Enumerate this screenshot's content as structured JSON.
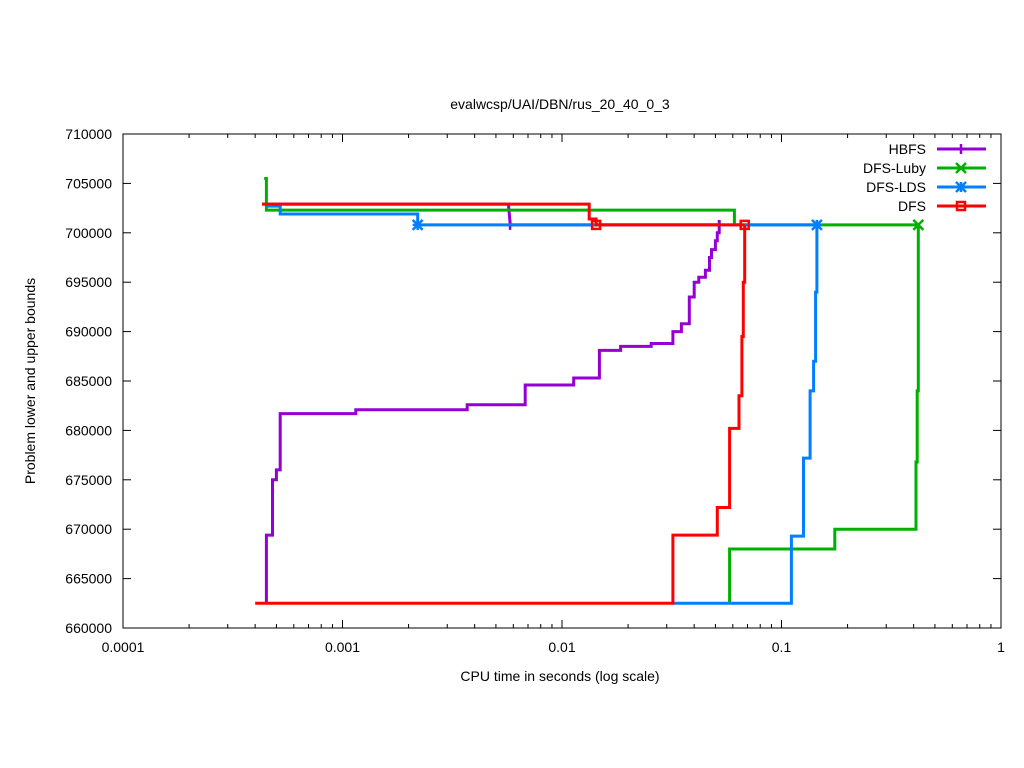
{
  "chart_data": {
    "type": "line",
    "title": "evalwcsp/UAI/DBN/rus_20_40_0_3",
    "xlabel": "CPU time in seconds (log scale)",
    "ylabel": "Problem lower and upper bounds",
    "xscale": "log",
    "xlim": [
      0.0001,
      1
    ],
    "ylim": [
      660000,
      710000
    ],
    "xticks": [
      0.0001,
      0.001,
      0.01,
      0.1,
      1
    ],
    "xtick_labels": [
      "0.0001",
      "0.001",
      "0.01",
      "0.1",
      "1"
    ],
    "yticks": [
      660000,
      665000,
      670000,
      675000,
      680000,
      685000,
      690000,
      695000,
      700000,
      705000,
      710000
    ],
    "ytick_labels": [
      "660000",
      "665000",
      "670000",
      "675000",
      "680000",
      "685000",
      "690000",
      "695000",
      "700000",
      "705000",
      "710000"
    ],
    "grid": false,
    "legend_position": "top-right",
    "series": [
      {
        "name": "HBFS",
        "color": "#9400d3",
        "marker": "plus",
        "upper": [
          [
            0.00043,
            702900
          ],
          [
            0.00052,
            702900
          ],
          [
            0.0057,
            702900
          ],
          [
            0.0058,
            701000
          ],
          [
            0.0058,
            700800
          ],
          [
            0.052,
            700800
          ]
        ],
        "lower": [
          [
            0.00045,
            662500
          ],
          [
            0.00045,
            669400
          ],
          [
            0.00048,
            669400
          ],
          [
            0.00048,
            675000
          ],
          [
            0.0005,
            675000
          ],
          [
            0.0005,
            676000
          ],
          [
            0.00052,
            676000
          ],
          [
            0.00052,
            681700
          ],
          [
            0.00115,
            681700
          ],
          [
            0.00115,
            682100
          ],
          [
            0.0037,
            682100
          ],
          [
            0.0037,
            682600
          ],
          [
            0.0068,
            682600
          ],
          [
            0.0068,
            684600
          ],
          [
            0.0113,
            684600
          ],
          [
            0.0113,
            685300
          ],
          [
            0.0148,
            685300
          ],
          [
            0.0148,
            688100
          ],
          [
            0.0185,
            688100
          ],
          [
            0.0185,
            688500
          ],
          [
            0.0255,
            688500
          ],
          [
            0.0255,
            688800
          ],
          [
            0.0295,
            688800
          ],
          [
            0.032,
            688800
          ],
          [
            0.032,
            690000
          ],
          [
            0.035,
            690000
          ],
          [
            0.035,
            690800
          ],
          [
            0.038,
            690800
          ],
          [
            0.038,
            693500
          ],
          [
            0.04,
            693500
          ],
          [
            0.04,
            695000
          ],
          [
            0.042,
            695000
          ],
          [
            0.042,
            695500
          ],
          [
            0.045,
            695500
          ],
          [
            0.045,
            696200
          ],
          [
            0.047,
            696200
          ],
          [
            0.047,
            697500
          ],
          [
            0.048,
            697500
          ],
          [
            0.048,
            698300
          ],
          [
            0.05,
            698300
          ],
          [
            0.05,
            699200
          ],
          [
            0.051,
            699200
          ],
          [
            0.051,
            700000
          ],
          [
            0.052,
            700000
          ],
          [
            0.052,
            701300
          ]
        ],
        "marker_points": [
          [
            0.0058,
            700800
          ]
        ]
      },
      {
        "name": "DFS-Luby",
        "color": "#00b000",
        "marker": "cross",
        "upper": [
          [
            0.00044,
            705500
          ],
          [
            0.00045,
            705500
          ],
          [
            0.00045,
            702300
          ],
          [
            0.061,
            702300
          ],
          [
            0.061,
            701000
          ],
          [
            0.061,
            700800
          ],
          [
            0.42,
            700800
          ]
        ],
        "lower": [
          [
            0.058,
            662500
          ],
          [
            0.058,
            668000
          ],
          [
            0.175,
            668000
          ],
          [
            0.175,
            670000
          ],
          [
            0.41,
            670000
          ],
          [
            0.41,
            676800
          ],
          [
            0.415,
            676800
          ],
          [
            0.415,
            684000
          ],
          [
            0.42,
            684000
          ],
          [
            0.42,
            700800
          ]
        ],
        "marker_points": [
          [
            0.42,
            700800
          ]
        ]
      },
      {
        "name": "DFS-LDS",
        "color": "#0080ff",
        "marker": "star",
        "upper": [
          [
            0.00045,
            702700
          ],
          [
            0.00052,
            702700
          ],
          [
            0.00052,
            701900
          ],
          [
            0.0022,
            701900
          ],
          [
            0.0022,
            700800
          ],
          [
            0.145,
            700800
          ]
        ],
        "lower": [
          [
            0.032,
            662500
          ],
          [
            0.111,
            662500
          ],
          [
            0.111,
            669300
          ],
          [
            0.126,
            669300
          ],
          [
            0.126,
            677200
          ],
          [
            0.135,
            677200
          ],
          [
            0.135,
            684000
          ],
          [
            0.14,
            684000
          ],
          [
            0.14,
            687000
          ],
          [
            0.143,
            687000
          ],
          [
            0.143,
            694000
          ],
          [
            0.145,
            694000
          ],
          [
            0.145,
            700800
          ]
        ],
        "marker_points": [
          [
            0.0022,
            700800
          ],
          [
            0.145,
            700800
          ]
        ]
      },
      {
        "name": "DFS",
        "color": "#ff0000",
        "marker": "square",
        "upper": [
          [
            0.00043,
            702900
          ],
          [
            0.0133,
            702900
          ],
          [
            0.0133,
            701400
          ],
          [
            0.0143,
            701400
          ],
          [
            0.0143,
            700800
          ],
          [
            0.068,
            700800
          ]
        ],
        "lower": [
          [
            0.0004,
            662500
          ],
          [
            0.032,
            662500
          ],
          [
            0.032,
            669400
          ],
          [
            0.051,
            669400
          ],
          [
            0.051,
            672200
          ],
          [
            0.058,
            672200
          ],
          [
            0.058,
            680200
          ],
          [
            0.064,
            680200
          ],
          [
            0.064,
            683500
          ],
          [
            0.066,
            683500
          ],
          [
            0.066,
            689500
          ],
          [
            0.067,
            689500
          ],
          [
            0.067,
            695000
          ],
          [
            0.068,
            695000
          ],
          [
            0.068,
            700800
          ]
        ],
        "marker_points": [
          [
            0.0143,
            700800
          ],
          [
            0.068,
            700800
          ]
        ]
      }
    ]
  }
}
